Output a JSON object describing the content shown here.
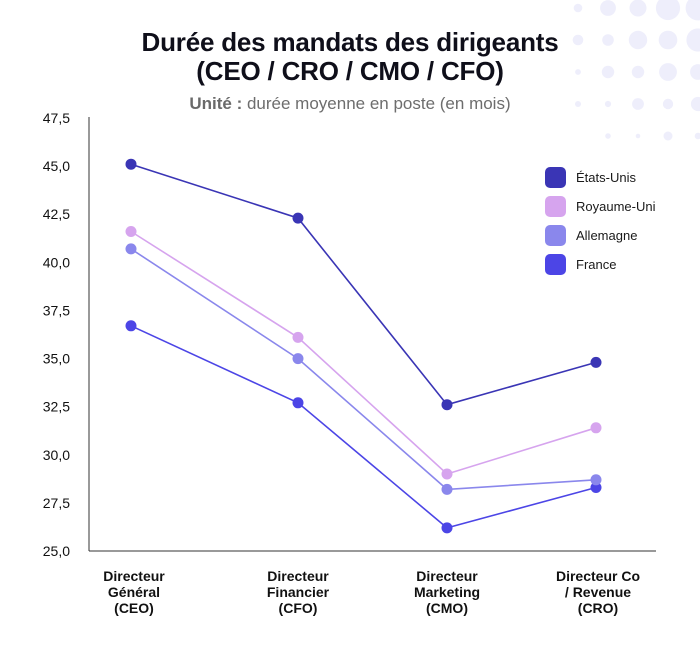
{
  "title_line1": "Durée des mandats des dirigeants",
  "title_line2": "(CEO / CRO / CMO / CFO)",
  "subtitle_label": "Unité :",
  "subtitle_text": " durée moyenne en poste (en mois)",
  "chart_data": {
    "type": "line",
    "categories": [
      "Directeur\nGénéral\n(CEO)",
      "Directeur\nFinancier\n(CFO)",
      "Directeur\nMarketing\n(CMO)",
      "Directeur Co\n/ Revenue\n(CRO)"
    ],
    "ylim": [
      25.0,
      47.5
    ],
    "yticks": [
      "25,0",
      "27,5",
      "30,0",
      "32,5",
      "35,0",
      "37,5",
      "40,0",
      "42,5",
      "45,0",
      "47,5"
    ],
    "grid": false,
    "legend_position": "top-right",
    "series": [
      {
        "name": "États-Unis",
        "color": "#3a35b5",
        "values": [
          45.1,
          42.3,
          32.6,
          34.8
        ]
      },
      {
        "name": "Royaume-Uni",
        "color": "#d6a4ee",
        "values": [
          41.6,
          36.1,
          29.0,
          31.4
        ]
      },
      {
        "name": "Allemagne",
        "color": "#8a87ec",
        "values": [
          40.7,
          35.0,
          28.2,
          28.7
        ]
      },
      {
        "name": "France",
        "color": "#4c45e6",
        "values": [
          36.7,
          32.7,
          26.2,
          28.3
        ]
      }
    ]
  }
}
